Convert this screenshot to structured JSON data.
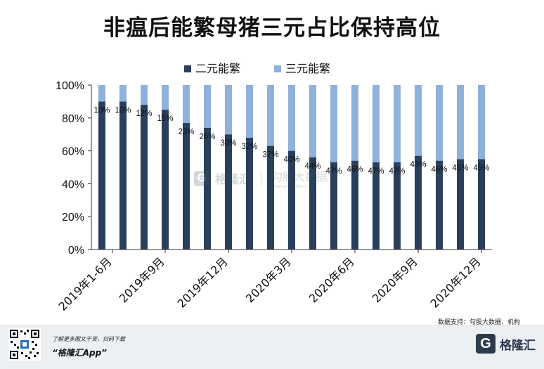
{
  "title": "非瘟后能繁母猪三元占比保持高位",
  "source_note": "数据支持：勾股大数据、机构",
  "footer": {
    "tagline": "了解更多图文干货，扫码下载",
    "app_name": "“格隆汇App”",
    "brand": "格隆汇",
    "brand_mark": "G"
  },
  "watermark": {
    "mark": "G",
    "name": "格隆汇",
    "cn": "勾股大数据",
    "url": "www.gogudata.com"
  },
  "colors": {
    "dark_series": "#2a3f5c",
    "light_series": "#8fb1dc",
    "grid": "#d9d9d9",
    "text": "#111111"
  },
  "chart_data": {
    "type": "bar",
    "stacked": true,
    "title": "非瘟后能繁母猪三元占比保持高位",
    "series": [
      {
        "name": "二元能繁",
        "values": [
          90,
          90,
          88,
          85,
          77,
          74,
          70,
          68,
          63,
          60,
          56,
          53,
          54,
          53,
          53,
          57,
          54,
          55,
          55
        ]
      },
      {
        "name": "三元能繁",
        "values": [
          10,
          10,
          12,
          15,
          23,
          26,
          30,
          32,
          37,
          40,
          44,
          47,
          46,
          47,
          47,
          43,
          46,
          45,
          45
        ]
      }
    ],
    "data_labels": [
      "10%",
      "10%",
      "12%",
      "15%",
      "23%",
      "26%",
      "30%",
      "32%",
      "37%",
      "40%",
      "44%",
      "47%",
      "46%",
      "47%",
      "47%",
      "43%",
      "46%",
      "45%",
      "45%"
    ],
    "x_tick_labels": [
      {
        "index": 0.5,
        "label": "2019年1-6月"
      },
      {
        "index": 3,
        "label": "2019年9月"
      },
      {
        "index": 6,
        "label": "2019年12月"
      },
      {
        "index": 9,
        "label": "2020年3月"
      },
      {
        "index": 12,
        "label": "2020年6月"
      },
      {
        "index": 15,
        "label": "2020年9月"
      },
      {
        "index": 18,
        "label": "2020年12月"
      }
    ],
    "y_ticks": [
      "0%",
      "20%",
      "40%",
      "60%",
      "80%",
      "100%"
    ],
    "ylim": [
      0,
      100
    ],
    "grid": false,
    "legend_position": "top"
  }
}
